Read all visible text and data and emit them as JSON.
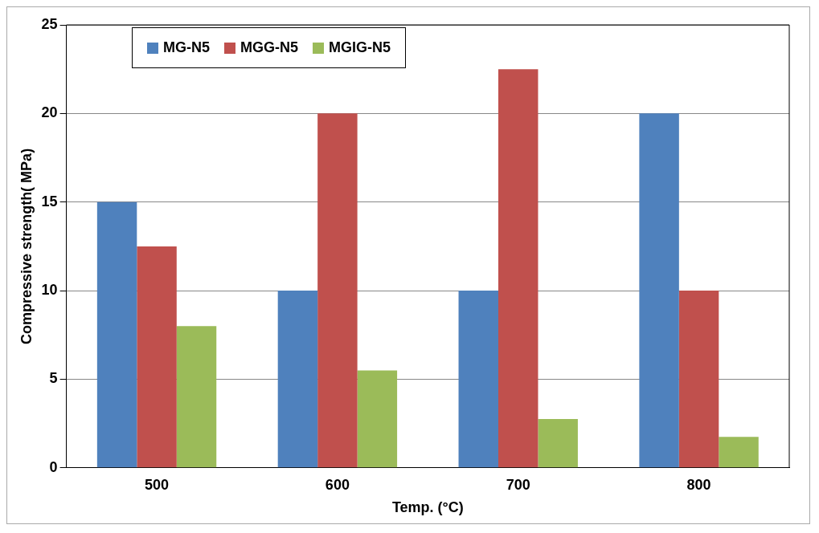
{
  "chart_data": {
    "type": "bar",
    "xlabel": "Temp. (°C)",
    "ylabel": "Compressive strength( MPa)",
    "categories": [
      "500",
      "600",
      "700",
      "800"
    ],
    "series": [
      {
        "name": "MG-N5",
        "color": "#4f81bd",
        "values": [
          15,
          10,
          10,
          20
        ]
      },
      {
        "name": "MGG-N5",
        "color": "#c0504d",
        "values": [
          12.5,
          20,
          22.5,
          10
        ]
      },
      {
        "name": "MGIG-N5",
        "color": "#9bbb59",
        "values": [
          8,
          5.5,
          2.75,
          1.75
        ]
      }
    ],
    "ylim": [
      0,
      25
    ],
    "yticks": [
      0,
      5,
      10,
      15,
      20,
      25
    ],
    "grid": "y",
    "legend": "top left"
  }
}
